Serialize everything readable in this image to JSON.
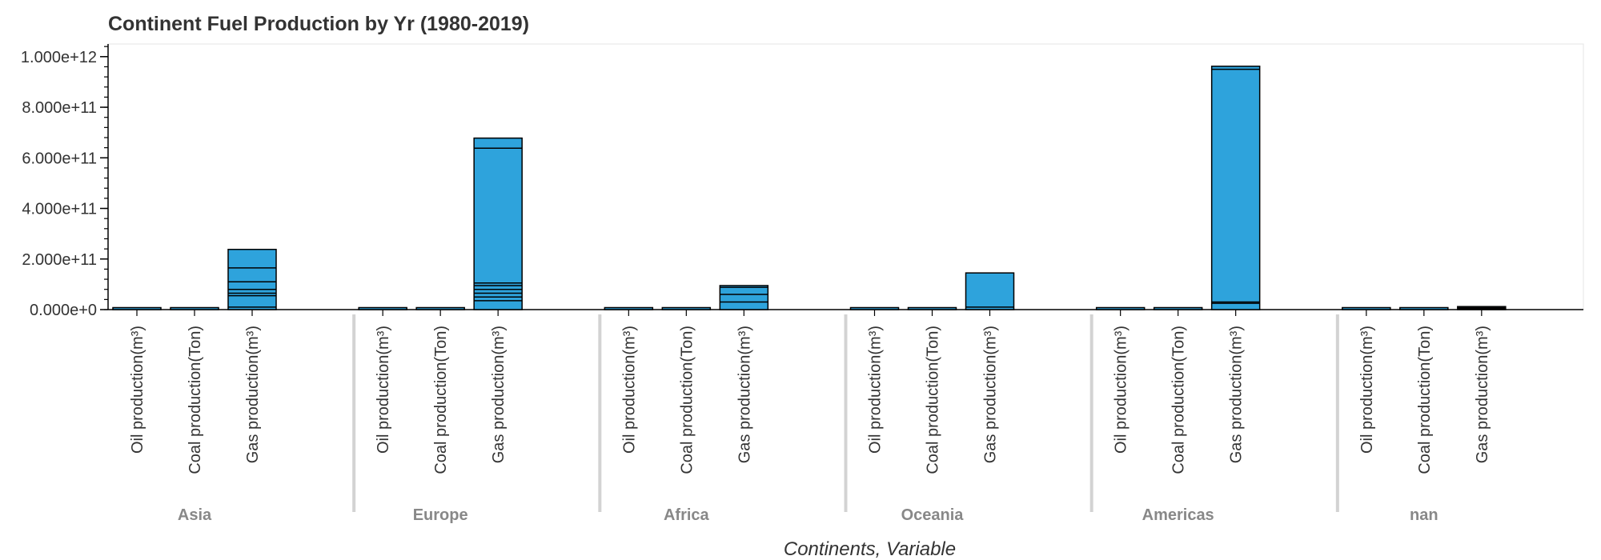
{
  "chart_data": {
    "type": "bar",
    "stacked": true,
    "title": "Continent Fuel Production by Yr (1980-2019)",
    "xlabel": "Continents, Variable",
    "ylabel": "",
    "ylim": [
      0,
      1050000000000.0
    ],
    "yticks": [
      0,
      200000000000.0,
      400000000000.0,
      600000000000.0,
      800000000000.0,
      1000000000000.0
    ],
    "ytick_labels": [
      "0.000e+0",
      "2.000e+11",
      "4.000e+11",
      "6.000e+11",
      "8.000e+11",
      "1.000e+12"
    ],
    "variables": [
      "Oil production(m³)",
      "Coal production(Ton)",
      "Gas production(m³)"
    ],
    "groups": [
      {
        "name": "Asia",
        "values": [
          3000000000.0,
          5000000000.0,
          238000000000.0
        ],
        "segments": [
          10000000000.0,
          55000000000.0,
          65000000000.0,
          80000000000.0,
          110000000000.0,
          165000000000.0
        ]
      },
      {
        "name": "Europe",
        "values": [
          3000000000.0,
          3000000000.0,
          678000000000.0
        ],
        "segments": [
          35000000000.0,
          50000000000.0,
          65000000000.0,
          80000000000.0,
          95000000000.0,
          105000000000.0,
          638000000000.0
        ]
      },
      {
        "name": "Africa",
        "values": [
          2000000000.0,
          2000000000.0,
          95000000000.0
        ],
        "segments": [
          30000000000.0,
          60000000000.0,
          88000000000.0
        ]
      },
      {
        "name": "Oceania",
        "values": [
          1000000000.0,
          2000000000.0,
          145000000000.0
        ],
        "segments": [
          10000000000.0
        ]
      },
      {
        "name": "Americas",
        "values": [
          2000000000.0,
          2000000000.0,
          962000000000.0
        ],
        "segments": [
          25000000000.0,
          30000000000.0,
          950000000000.0
        ]
      },
      {
        "name": "nan",
        "values": [
          0,
          1000000000.0,
          12000000000.0
        ],
        "segments": [
          4000000000.0,
          8000000000.0
        ]
      }
    ],
    "bar_color": "#2ea3dc",
    "edge_color": "#000000",
    "grid": false,
    "legend": "none"
  }
}
